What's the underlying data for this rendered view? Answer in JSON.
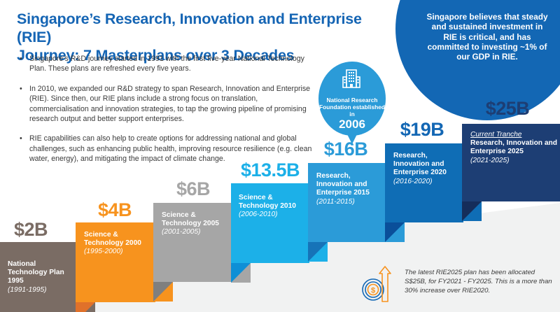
{
  "title": {
    "line1": "Singapore’s Research, Innovation and Enterprise (RIE)",
    "line2": "Journey: 7 Masterplans over 3 Decades"
  },
  "bullets": [
    {
      "marker": "•",
      "text": "Singapore’s R&D journey started in 1991 with the first five-year National Technology Plan. These plans are refreshed every five years."
    },
    {
      "marker": "•",
      "text": "In 2010, we expanded our R&D strategy to span Research, Innovation and Enterprise (RIE). Since then, our RIE plans include a strong focus on translation, commercialisation and innovation strategies, to tap the growing pipeline of promising research output and better support enterprises."
    },
    {
      "marker": "•",
      "text": "RIE capabilities can also help to create options for addressing national and global challenges, such as enhancing public health, improving resource resilience (e.g. clean water, energy), and mitigating the impact of climate change."
    }
  ],
  "commitment_circle": {
    "text": "Singapore believes that steady and sustained investment in RIE is critical, and has committed to investing ~1% of our GDP in RIE."
  },
  "nrf_bubble": {
    "icon": "building-icon",
    "text": "National Research Foundation established in",
    "year": "2006"
  },
  "masterplans": [
    {
      "amount": "$2B",
      "name": "National Technology Plan 1995",
      "period": "(1991-1995)",
      "color": "#7a6c64",
      "fold_color": "#5e524b",
      "amount_color": "#7a6c64"
    },
    {
      "amount": "$4B",
      "name": "Science & Technology 2000",
      "period": "(1995-2000)",
      "color": "#f7931e",
      "fold_color": "#e0712a",
      "amount_color": "#f7931e"
    },
    {
      "amount": "$6B",
      "name": "Science & Technology 2005",
      "period": "(2001-2005)",
      "color": "#a6a6a6",
      "fold_color": "#7f7f7f",
      "amount_color": "#a6a6a6"
    },
    {
      "amount": "$13.5B",
      "name": "Science & Technology 2010",
      "period": "(2006-2010)",
      "color": "#1cb0e8",
      "fold_color": "#0e8fd6",
      "amount_color": "#1cb0e8"
    },
    {
      "amount": "$16B",
      "name": "Research, Innovation and Enterprise 2015",
      "period": "(2011-2015)",
      "color": "#2b9bd8",
      "fold_color": "#1673b8",
      "amount_color": "#2b9bd8"
    },
    {
      "amount": "$19B",
      "name": "Research, Innovation and Enterprise 2020",
      "period": "(2016-2020)",
      "color": "#0f6db5",
      "fold_color": "#0a4f9a",
      "amount_color": "#1367b4"
    },
    {
      "amount": "$25B",
      "name": "Research, Innovation and Enterprise 2025",
      "period": "(2021-2025)",
      "tag": "Current Tranche",
      "color": "#1d3e74",
      "fold_color": "#152d5a",
      "amount_color": "#1d3e74"
    }
  ],
  "note": {
    "icon": "dollar-coin-arrow-up-icon",
    "text": "The latest RIE2025 plan has been allocated S$25B, for FY2021 - FY2025. This is a more than 30% increase over RIE2020."
  },
  "colors": {
    "title": "#1565b4",
    "circle": "#1367b4",
    "bubble": "#2b9bd8",
    "floor": "#f1f2f2",
    "note_icon_blue": "#1367b4",
    "note_icon_orange": "#f7931e"
  }
}
